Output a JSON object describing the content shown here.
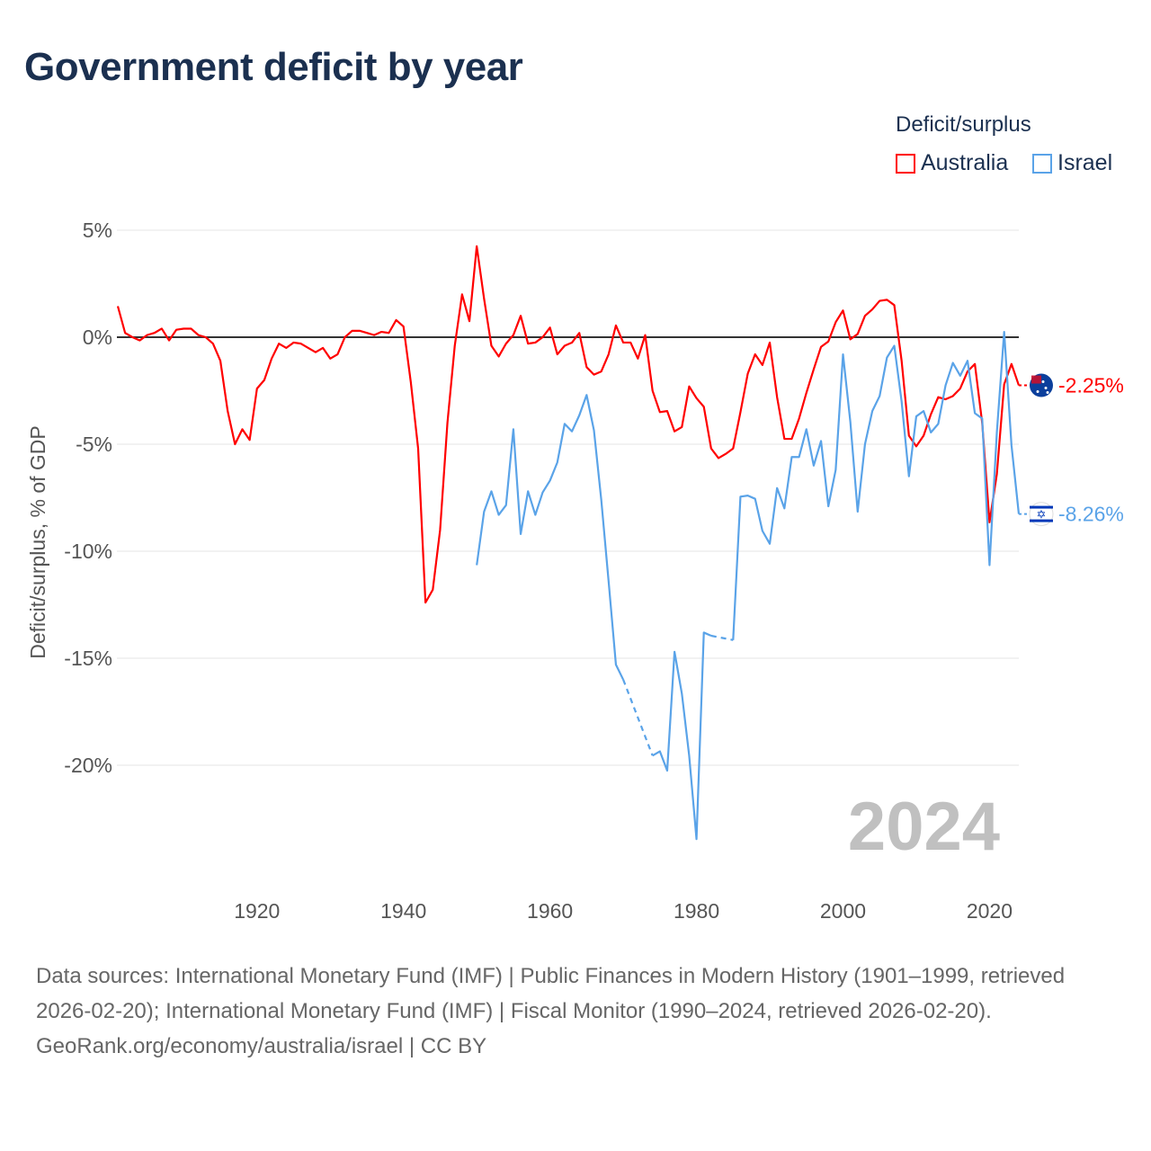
{
  "title": "Government deficit by year",
  "legend": {
    "title": "Deficit/surplus",
    "items": [
      {
        "label": "Australia",
        "color": "#ff0000"
      },
      {
        "label": "Israel",
        "color": "#5aa3e8"
      }
    ]
  },
  "watermark_year": "2024",
  "footer": {
    "sources": "Data sources: International Monetary Fund (IMF) | Public Finances in Modern History (1901–1999, retrieved 2026-02-20); International Monetary Fund (IMF) | Fiscal Monitor (1990–2024, retrieved 2026-02-20).",
    "credit": "GeoRank.org/economy/australia/israel | CC BY"
  },
  "chart_data": {
    "type": "line",
    "title": "Government deficit by year",
    "ylabel": "Deficit/surplus, % of GDP",
    "xlabel": "",
    "xlim": [
      1901,
      2024
    ],
    "ylim": [
      -24.5,
      5
    ],
    "grid": true,
    "legend_position": "top-right",
    "x_ticks": [
      1920,
      1940,
      1960,
      1980,
      2000,
      2020
    ],
    "x_tick_labels": [
      "1920",
      "1940",
      "1960",
      "1980",
      "2000",
      "2020"
    ],
    "y_ticks": [
      5,
      0,
      -5,
      -10,
      -15,
      -20
    ],
    "y_tick_labels": [
      "5%",
      "0%",
      "-5%",
      "-10%",
      "-15%",
      "-20%"
    ],
    "end_labels": [
      "-2.25%",
      "-8.26%"
    ],
    "series": [
      {
        "name": "Australia",
        "color": "#ff0000",
        "start_year": 1901,
        "values": [
          1.45,
          0.2,
          0,
          -0.15,
          0.1,
          0.2,
          0.4,
          -0.15,
          0.35,
          0.4,
          0.4,
          0.1,
          0,
          -0.3,
          -1.1,
          -3.45,
          -5,
          -4.3,
          -4.8,
          -2.4,
          -2,
          -1,
          -0.3,
          -0.5,
          -0.25,
          -0.3,
          -0.5,
          -0.7,
          -0.5,
          -1,
          -0.8,
          0,
          0.3,
          0.3,
          0.2,
          0.1,
          0.25,
          0.2,
          0.8,
          0.5,
          -2.1,
          -5.2,
          -12.4,
          -11.8,
          -9,
          -4,
          -0.4,
          2,
          0.75,
          4.25,
          1.8,
          -0.4,
          -0.9,
          -0.3,
          0.1,
          1,
          -0.3,
          -0.25,
          0,
          0.45,
          -0.8,
          -0.4,
          -0.25,
          0.2,
          -1.4,
          -1.75,
          -1.6,
          -0.8,
          0.55,
          -0.25,
          -0.25,
          -1,
          0.1,
          -2.5,
          -3.5,
          -3.45,
          -4.4,
          -4.2,
          -2.3,
          -2.85,
          -3.25,
          -5.2,
          -5.65,
          -5.45,
          -5.2,
          -3.5,
          -1.7,
          -0.8,
          -1.3,
          -0.25,
          -2.8,
          -4.75,
          -4.75,
          -3.8,
          -2.6,
          -1.5,
          -0.45,
          -0.2,
          0.7,
          1.25,
          -0.1,
          0.15,
          1,
          1.3,
          1.7,
          1.75,
          1.5,
          -1.1,
          -4.6,
          -5.1,
          -4.6,
          -3.6,
          -2.8,
          -2.9,
          -2.75,
          -2.4,
          -1.6,
          -1.25,
          -4,
          -8.65,
          -6.4,
          -2.2,
          -1.25,
          -2.25
        ]
      },
      {
        "name": "Israel",
        "color": "#5aa3e8",
        "start_year": 1950,
        "values": [
          -10.65,
          -8.15,
          -7.2,
          -8.3,
          -7.85,
          -4.3,
          -9.2,
          -7.2,
          -8.3,
          -7.25,
          -6.7,
          -5.85,
          -4.05,
          -4.4,
          -3.65,
          -2.7,
          -4.35,
          -7.6,
          -11.4,
          -15.3,
          -16,
          null,
          null,
          null,
          -19.55,
          -19.35,
          -20.25,
          -14.7,
          -16.65,
          -19.55,
          -23.45,
          -13.8,
          -13.95,
          null,
          null,
          -14.15,
          -7.45,
          -7.4,
          -7.55,
          -9.05,
          -9.65,
          -7.05,
          -8.0,
          -5.6,
          -5.6,
          -4.3,
          -6,
          -4.85,
          -7.9,
          -6.2,
          -0.8,
          -3.95,
          -8.15,
          -5,
          -3.45,
          -2.75,
          -0.95,
          -0.4,
          -3,
          -6.5,
          -3.7,
          -3.45,
          -4.45,
          -4.05,
          -2.25,
          -1.2,
          -1.8,
          -1.1,
          -3.55,
          -3.8,
          -10.65,
          -4.45,
          0.25,
          -5.05,
          -8.26
        ]
      }
    ]
  }
}
